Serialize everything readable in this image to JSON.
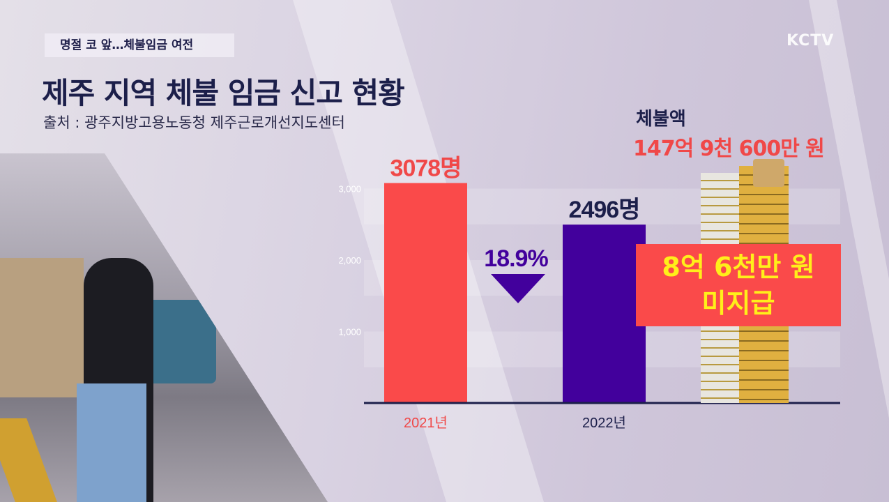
{
  "header": {
    "subtitle": "명절 코 앞…체불임금 여전",
    "title": "제주 지역 체불 임금 신고 현황",
    "source": "출처 : 광주지방고용노동청 제주근로개선지도센터",
    "logo": "KCTV"
  },
  "amount": {
    "label": "체불액",
    "value": "147억 9천 600만 원",
    "unpaid_line1": "8억 6천만 원",
    "unpaid_line2": "미지급"
  },
  "chart_data": {
    "type": "bar",
    "title": "제주 지역 체불 임금 신고 현황",
    "categories": [
      "2021년",
      "2022년"
    ],
    "values": [
      3078,
      2496
    ],
    "data_labels": [
      "3078명",
      "2496명"
    ],
    "colors": [
      "#fa4a4a",
      "#42009c"
    ],
    "yticks": [
      "1,000",
      "2,000",
      "3,000"
    ],
    "ytick_values": [
      1000,
      2000,
      3000
    ],
    "ylim": [
      0,
      3500
    ],
    "annotation": "18.9%",
    "annotation_color": "#42009c",
    "xlabel": "",
    "ylabel": ""
  }
}
